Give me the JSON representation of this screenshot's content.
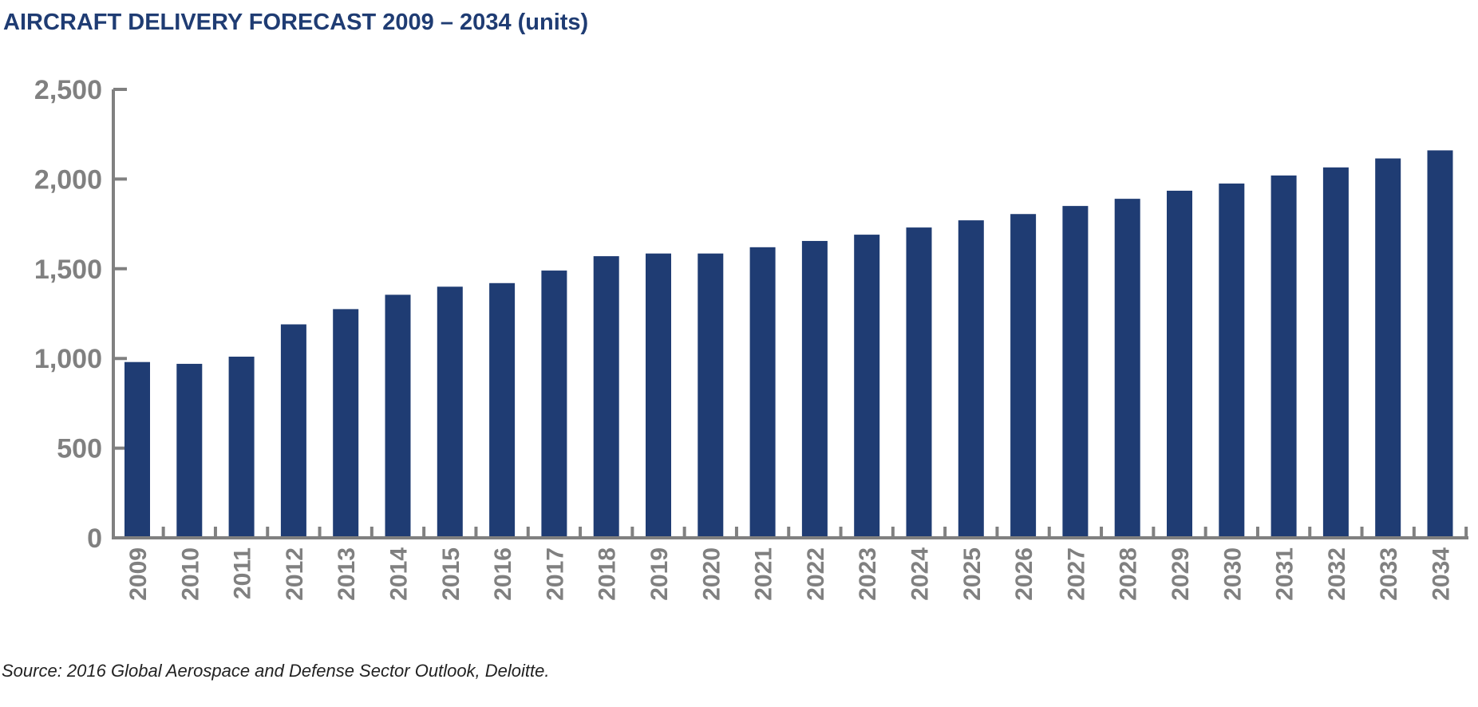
{
  "chart_data": {
    "type": "bar",
    "title": "AIRCRAFT DELIVERY FORECAST 2009 – 2034 (units)",
    "xlabel": "",
    "ylabel": "",
    "ylim": [
      0,
      2500
    ],
    "yticks": [
      0,
      500,
      1000,
      1500,
      2000,
      2500
    ],
    "ytick_labels": [
      "0",
      "500",
      "1,000",
      "1,500",
      "2,000",
      "2,500"
    ],
    "grid": false,
    "bar_color": "#1f3c73",
    "axis_color": "#808080",
    "categories": [
      "2009",
      "2010",
      "2011",
      "2012",
      "2013",
      "2014",
      "2015",
      "2016",
      "2017",
      "2018",
      "2019",
      "2020",
      "2021",
      "2022",
      "2023",
      "2024",
      "2025",
      "2026",
      "2027",
      "2028",
      "2029",
      "2030",
      "2031",
      "2032",
      "2033",
      "2034"
    ],
    "values": [
      980,
      970,
      1010,
      1190,
      1275,
      1355,
      1400,
      1420,
      1490,
      1570,
      1585,
      1585,
      1620,
      1655,
      1690,
      1730,
      1770,
      1805,
      1850,
      1890,
      1935,
      1975,
      2020,
      2065,
      2115,
      2160
    ]
  },
  "source": "Source: 2016 Global Aerospace and Defense Sector Outlook, Deloitte."
}
